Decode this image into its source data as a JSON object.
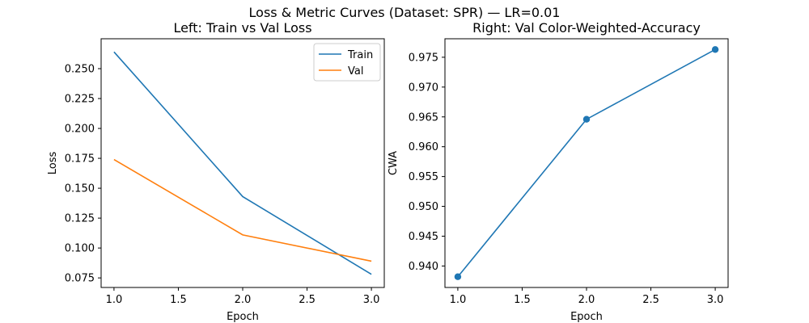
{
  "figure": {
    "suptitle": "Loss & Metric Curves (Dataset: SPR) — LR=0.01"
  },
  "chart_data": [
    {
      "type": "line",
      "title": "Left: Train vs Val Loss",
      "xlabel": "Epoch",
      "ylabel": "Loss",
      "x": [
        1.0,
        2.0,
        3.0
      ],
      "xlim": [
        0.9,
        3.1
      ],
      "ylim": [
        0.067,
        0.275
      ],
      "xticks": [
        1.0,
        1.5,
        2.0,
        2.5,
        3.0
      ],
      "yticks": [
        0.075,
        0.1,
        0.125,
        0.15,
        0.175,
        0.2,
        0.225,
        0.25
      ],
      "xtick_labels": [
        "1.0",
        "1.5",
        "2.0",
        "2.5",
        "3.0"
      ],
      "ytick_labels": [
        "0.075",
        "0.100",
        "0.125",
        "0.150",
        "0.175",
        "0.200",
        "0.225",
        "0.250"
      ],
      "grid": false,
      "legend": "top-right",
      "series": [
        {
          "name": "Train",
          "color": "#1f77b4",
          "values": [
            0.264,
            0.143,
            0.078
          ]
        },
        {
          "name": "Val",
          "color": "#ff7f0e",
          "values": [
            0.174,
            0.111,
            0.089
          ]
        }
      ]
    },
    {
      "type": "line",
      "title": "Right: Val Color-Weighted-Accuracy",
      "xlabel": "Epoch",
      "ylabel": "CWA",
      "x": [
        1.0,
        2.0,
        3.0
      ],
      "xlim": [
        0.9,
        3.1
      ],
      "ylim": [
        0.9364,
        0.9781
      ],
      "xticks": [
        1.0,
        1.5,
        2.0,
        2.5,
        3.0
      ],
      "yticks": [
        0.94,
        0.945,
        0.95,
        0.955,
        0.96,
        0.965,
        0.97,
        0.975
      ],
      "xtick_labels": [
        "1.0",
        "1.5",
        "2.0",
        "2.5",
        "3.0"
      ],
      "ytick_labels": [
        "0.940",
        "0.945",
        "0.950",
        "0.955",
        "0.960",
        "0.965",
        "0.970",
        "0.975"
      ],
      "grid": false,
      "markers": true,
      "series": [
        {
          "color": "#1f77b4",
          "values": [
            0.9382,
            0.9646,
            0.9763
          ]
        }
      ]
    }
  ]
}
